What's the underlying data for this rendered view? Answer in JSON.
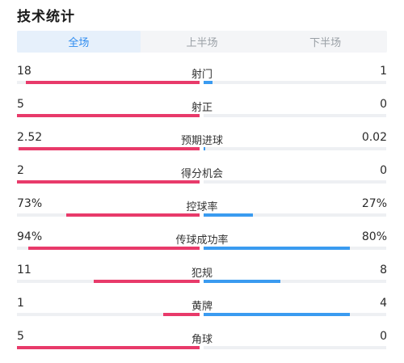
{
  "header": {
    "title": "技术统计"
  },
  "tabs": [
    {
      "label": "全场",
      "active": true
    },
    {
      "label": "上半场",
      "active": false
    },
    {
      "label": "下半场",
      "active": false
    }
  ],
  "colors": {
    "home": "#e83a6a",
    "away": "#3a9bf0",
    "active_tab": "#2f8cf0"
  },
  "stats": [
    {
      "label": "射门",
      "home": "18",
      "away": "1",
      "home_share": 0.95,
      "away_share": 0.05
    },
    {
      "label": "射正",
      "home": "5",
      "away": "0",
      "home_share": 1.0,
      "away_share": 0.0
    },
    {
      "label": "预期进球",
      "home": "2.52",
      "away": "0.02",
      "home_share": 0.99,
      "away_share": 0.01
    },
    {
      "label": "得分机会",
      "home": "2",
      "away": "0",
      "home_share": 1.0,
      "away_share": 0.0
    },
    {
      "label": "控球率",
      "home": "73%",
      "away": "27%",
      "home_share": 0.73,
      "away_share": 0.27
    },
    {
      "label": "传球成功率",
      "home": "94%",
      "away": "80%",
      "home_share": 0.94,
      "away_share": 0.8
    },
    {
      "label": "犯规",
      "home": "11",
      "away": "8",
      "home_share": 0.58,
      "away_share": 0.42
    },
    {
      "label": "黄牌",
      "home": "1",
      "away": "4",
      "home_share": 0.2,
      "away_share": 0.8
    },
    {
      "label": "角球",
      "home": "5",
      "away": "0",
      "home_share": 1.0,
      "away_share": 0.0
    }
  ]
}
